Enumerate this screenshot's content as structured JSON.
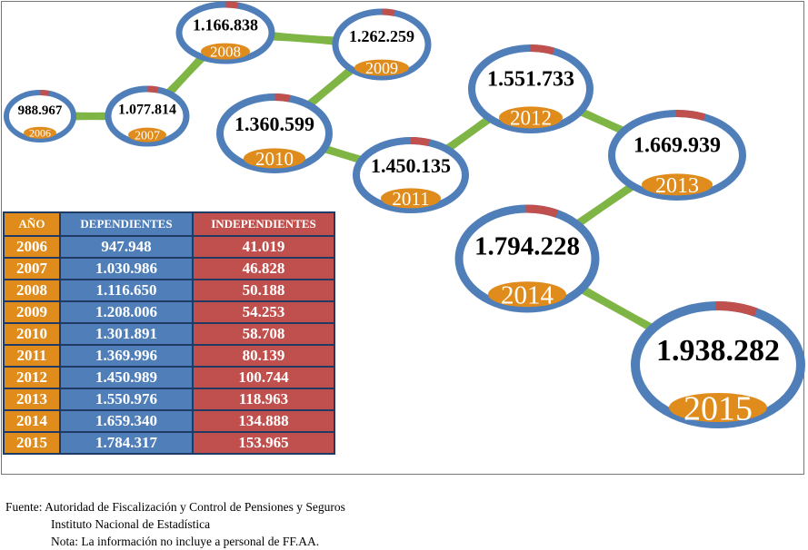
{
  "chart_data": {
    "type": "table",
    "bubbles": {
      "years": [
        "2006",
        "2007",
        "2008",
        "2009",
        "2010",
        "2011",
        "2012",
        "2013",
        "2014",
        "2015"
      ],
      "totals": [
        "988.967",
        "1.077.814",
        "1.166.838",
        "1.262.259",
        "1.360.599",
        "1.450.135",
        "1.551.733",
        "1.669.939",
        "1.794.228",
        "1.938.282"
      ]
    },
    "table": {
      "headers": [
        "AÑO",
        "DEPENDIENTES",
        "INDEPENDIENTES"
      ],
      "rows": [
        [
          "2006",
          "947.948",
          "41.019"
        ],
        [
          "2007",
          "1.030.986",
          "46.828"
        ],
        [
          "2008",
          "1.116.650",
          "50.188"
        ],
        [
          "2009",
          "1.208.006",
          "54.253"
        ],
        [
          "2010",
          "1.301.891",
          "58.708"
        ],
        [
          "2011",
          "1.369.996",
          "80.139"
        ],
        [
          "2012",
          "1.450.989",
          "100.744"
        ],
        [
          "2013",
          "1.550.976",
          "118.963"
        ],
        [
          "2014",
          "1.659.340",
          "134.888"
        ],
        [
          "2015",
          "1.784.317",
          "153.965"
        ]
      ]
    },
    "colors": {
      "dependientes": "#4f7eb9",
      "independientes": "#c0504d",
      "year": "#df8c1d",
      "connector": "#7fb545"
    }
  },
  "footer": {
    "source": "Fuente: Autoridad de Fiscalización y Control de Pensiones y Seguros",
    "institute": "Instituto Nacional de Estadística",
    "note": "Nota: La información no incluye a personal de FF.AA."
  }
}
